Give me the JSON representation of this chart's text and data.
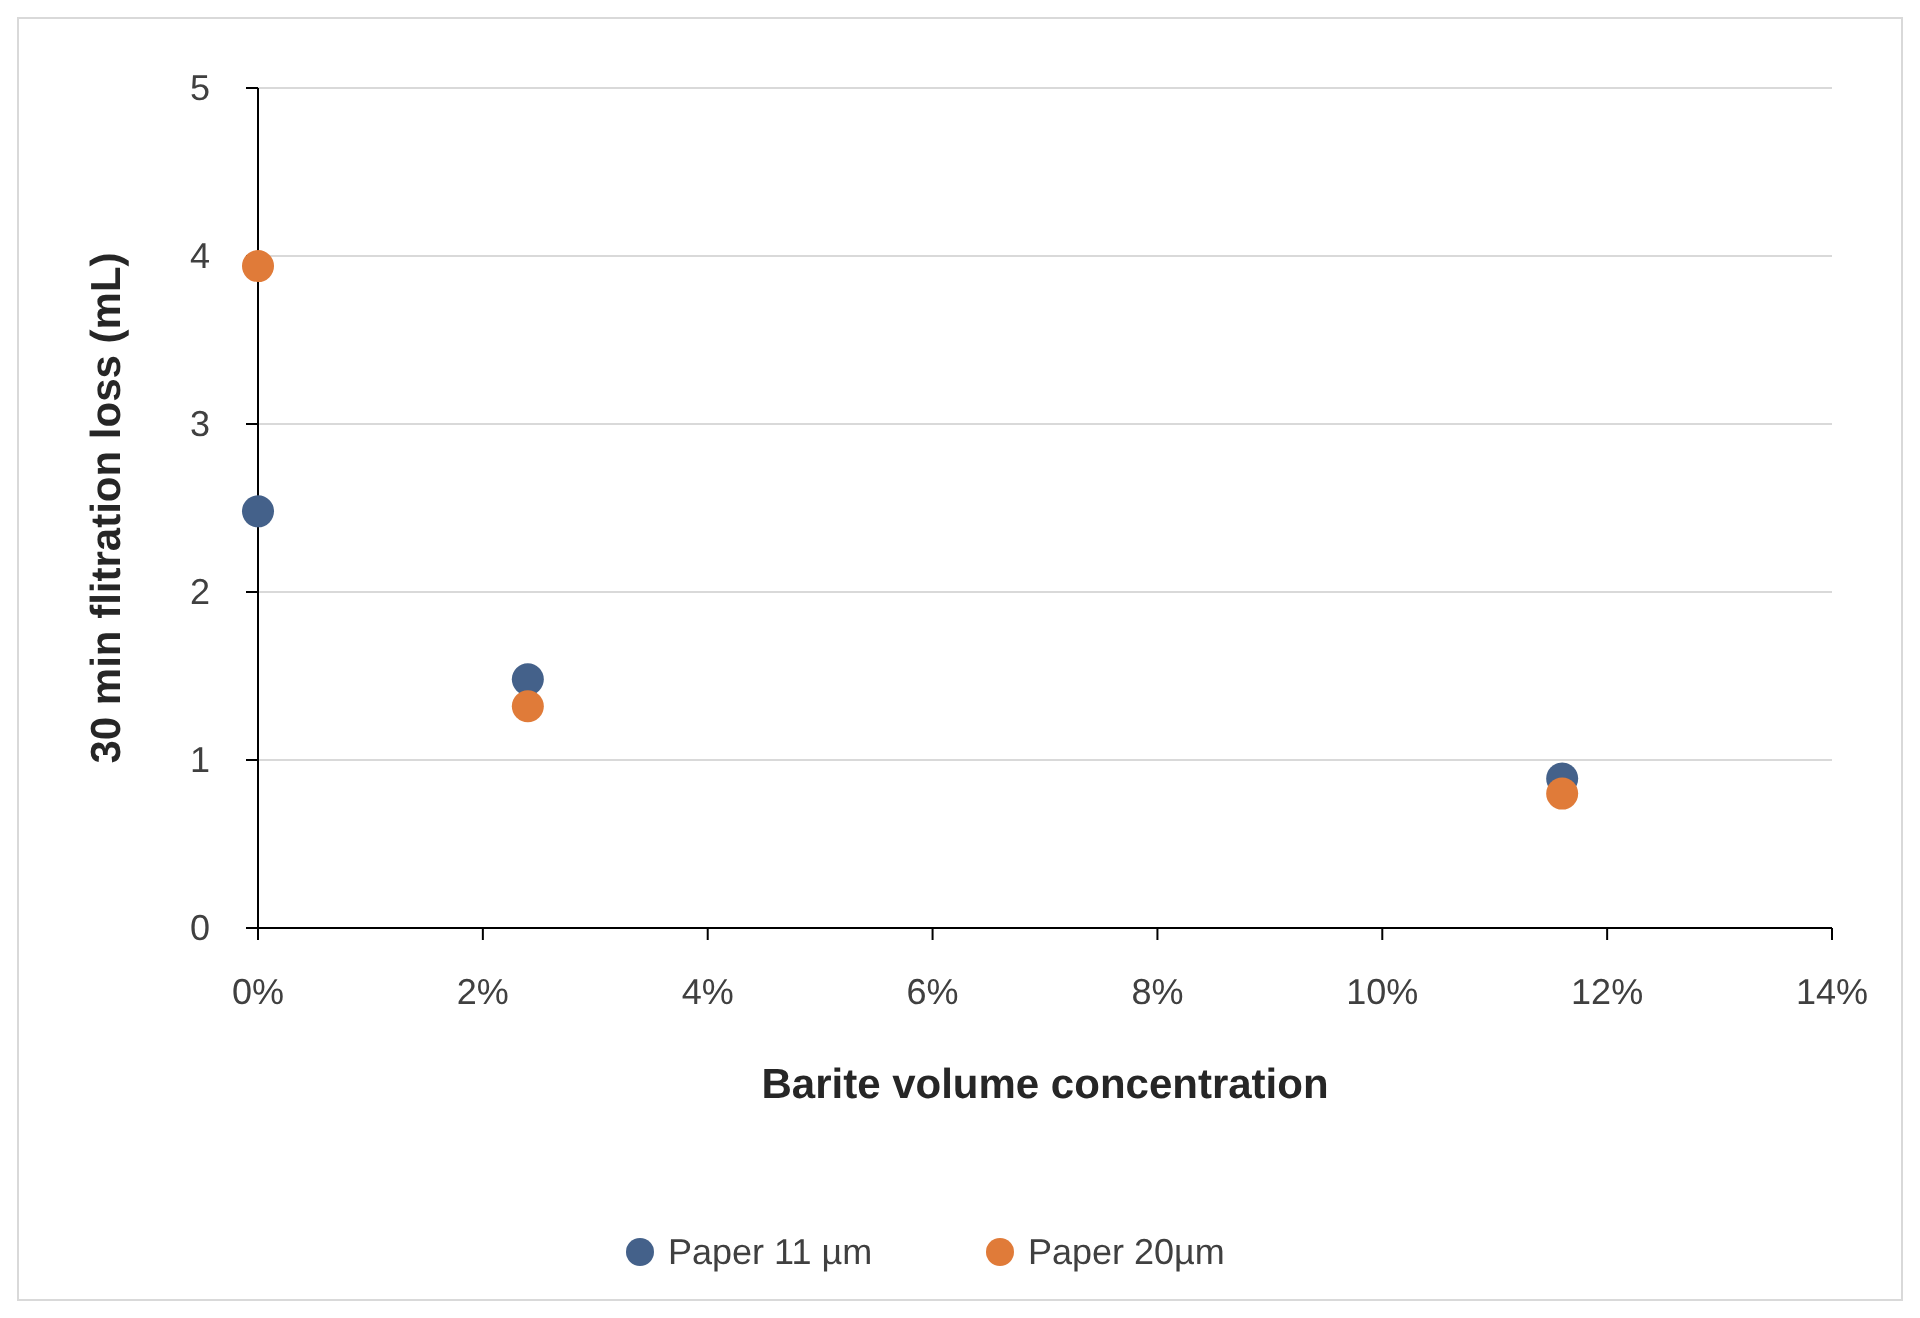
{
  "chart_data": {
    "type": "scatter",
    "xlabel": "Barite volume concentration",
    "ylabel": "30 min flitration loss (mL)",
    "x": [
      0,
      2.4,
      11.6
    ],
    "series": [
      {
        "name": "Paper 11 µm",
        "color": "#44618a",
        "values": [
          2.48,
          1.48,
          0.89
        ]
      },
      {
        "name": "Paper 20µm",
        "color": "#e07b39",
        "values": [
          3.94,
          1.32,
          0.8
        ]
      }
    ],
    "xlim": [
      0,
      14
    ],
    "xticks": [
      {
        "value": 0,
        "label": "0%"
      },
      {
        "value": 2,
        "label": "2%"
      },
      {
        "value": 4,
        "label": "4%"
      },
      {
        "value": 6,
        "label": "6%"
      },
      {
        "value": 8,
        "label": "8%"
      },
      {
        "value": 10,
        "label": "10%"
      },
      {
        "value": 12,
        "label": "12%"
      },
      {
        "value": 14,
        "label": "14%"
      }
    ],
    "ylim": [
      0,
      5
    ],
    "yticks": [
      0,
      1,
      2,
      3,
      4,
      5
    ],
    "grid": "y",
    "legend": "bottom",
    "marker": "circle"
  }
}
